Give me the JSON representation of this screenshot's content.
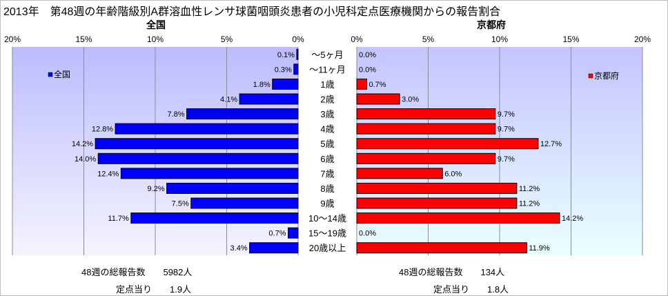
{
  "title": "2013年　第48週の年齢階級別A群溶血性レンサ球菌咽頭炎患者の小児科定点医療機関からの報告割合",
  "chart_data": [
    {
      "type": "bar",
      "orientation": "horizontal",
      "title": "全国",
      "legend": "全国",
      "legend_position": "top-left",
      "color": "#0000FF",
      "xlim": [
        0,
        20
      ],
      "x_direction": "reversed",
      "ticks": [
        "20%",
        "15%",
        "10%",
        "5%",
        "0%"
      ],
      "categories": [
        "～5ヶ月",
        "～11ヶ月",
        "1歳",
        "2歳",
        "3歳",
        "4歳",
        "5歳",
        "6歳",
        "7歳",
        "8歳",
        "9歳",
        "10～14歳",
        "15～19歳",
        "20歳以上"
      ],
      "values": [
        0.1,
        0.3,
        1.8,
        4.1,
        7.8,
        12.8,
        14.2,
        14.0,
        12.4,
        9.2,
        7.5,
        11.7,
        0.7,
        3.4
      ],
      "labels": [
        "0.1%",
        "0.3%",
        "1.8%",
        "4.1%",
        "7.8%",
        "12.8%",
        "14.2%",
        "14.0%",
        "12.4%",
        "9.2%",
        "7.5%",
        "11.7%",
        "0.7%",
        "3.4%"
      ],
      "grid": true
    },
    {
      "type": "bar",
      "orientation": "horizontal",
      "title": "京都府",
      "legend": "京都府",
      "legend_position": "top-right",
      "color": "#FF0000",
      "xlim": [
        0,
        20
      ],
      "ticks": [
        "0%",
        "5%",
        "10%",
        "15%",
        "20%"
      ],
      "categories": [
        "～5ヶ月",
        "～11ヶ月",
        "1歳",
        "2歳",
        "3歳",
        "4歳",
        "5歳",
        "6歳",
        "7歳",
        "8歳",
        "9歳",
        "10～14歳",
        "15～19歳",
        "20歳以上"
      ],
      "values": [
        0.0,
        0.0,
        0.7,
        3.0,
        9.7,
        9.7,
        12.7,
        9.7,
        6.0,
        11.2,
        11.2,
        14.2,
        0.0,
        11.9
      ],
      "labels": [
        "0.0%",
        "0.0%",
        "0.7%",
        "3.0%",
        "9.7%",
        "9.7%",
        "12.7%",
        "9.7%",
        "6.0%",
        "11.2%",
        "11.2%",
        "14.2%",
        "0.0%",
        "11.9%"
      ],
      "grid": true
    }
  ],
  "summary": {
    "national": {
      "total": "48週の総報告数　　5982人",
      "per_site": "定点当り　　1.9人"
    },
    "kyoto": {
      "total": "48週の総報告数　　134人",
      "per_site": "定点当り　　1.8人"
    }
  }
}
